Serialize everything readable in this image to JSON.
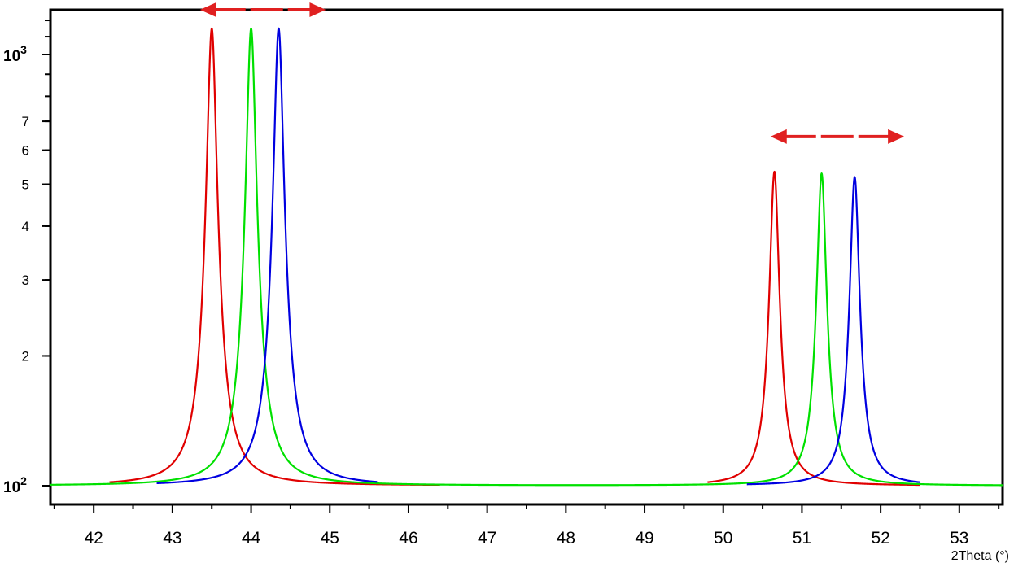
{
  "chart_data": {
    "type": "line",
    "title": "",
    "xlabel": "2Theta (°)",
    "ylabel": "",
    "xlim": [
      41.45,
      53.55
    ],
    "ylim": [
      92,
      1270
    ],
    "yscale": "log",
    "grid": false,
    "legend": "none",
    "x_ticks": [
      "42",
      "43",
      "44",
      "45",
      "46",
      "47",
      "48",
      "49",
      "50",
      "51",
      "52",
      "53"
    ],
    "y_ticks": [
      {
        "value": 100,
        "base": "10",
        "exp": "2"
      },
      {
        "value": 200,
        "label": "2"
      },
      {
        "value": 300,
        "label": "3"
      },
      {
        "value": 400,
        "label": "4"
      },
      {
        "value": 500,
        "label": "5"
      },
      {
        "value": 600,
        "label": "6"
      },
      {
        "value": 700,
        "label": "7"
      },
      {
        "value": 1000,
        "base": "10",
        "exp": "3"
      }
    ],
    "series": [
      {
        "color": "#e00000",
        "peaks": [
          {
            "x": 43.5,
            "y": 1150
          },
          {
            "x": 50.65,
            "y": 535
          }
        ],
        "baseline": 100,
        "x_ranges": [
          [
            42.2,
            46.4
          ],
          [
            49.8,
            52.5
          ]
        ]
      },
      {
        "color": "#00e000",
        "peaks": [
          {
            "x": 44.0,
            "y": 1150
          },
          {
            "x": 51.25,
            "y": 530
          }
        ],
        "baseline": 100,
        "x_ranges": [
          [
            41.45,
            53.55
          ]
        ]
      },
      {
        "color": "#0000e0",
        "peaks": [
          {
            "x": 44.35,
            "y": 1150
          },
          {
            "x": 51.67,
            "y": 520
          }
        ],
        "baseline": 100,
        "x_ranges": [
          [
            42.8,
            45.6
          ],
          [
            50.3,
            52.5
          ]
        ]
      }
    ],
    "annotations": [
      {
        "type": "double-arrow",
        "color": "#e02020",
        "x_from": 43.35,
        "x_to": 44.95,
        "y": 1270
      },
      {
        "type": "double-arrow",
        "color": "#e02020",
        "x_from": 50.6,
        "x_to": 52.3,
        "y": 645
      }
    ]
  }
}
